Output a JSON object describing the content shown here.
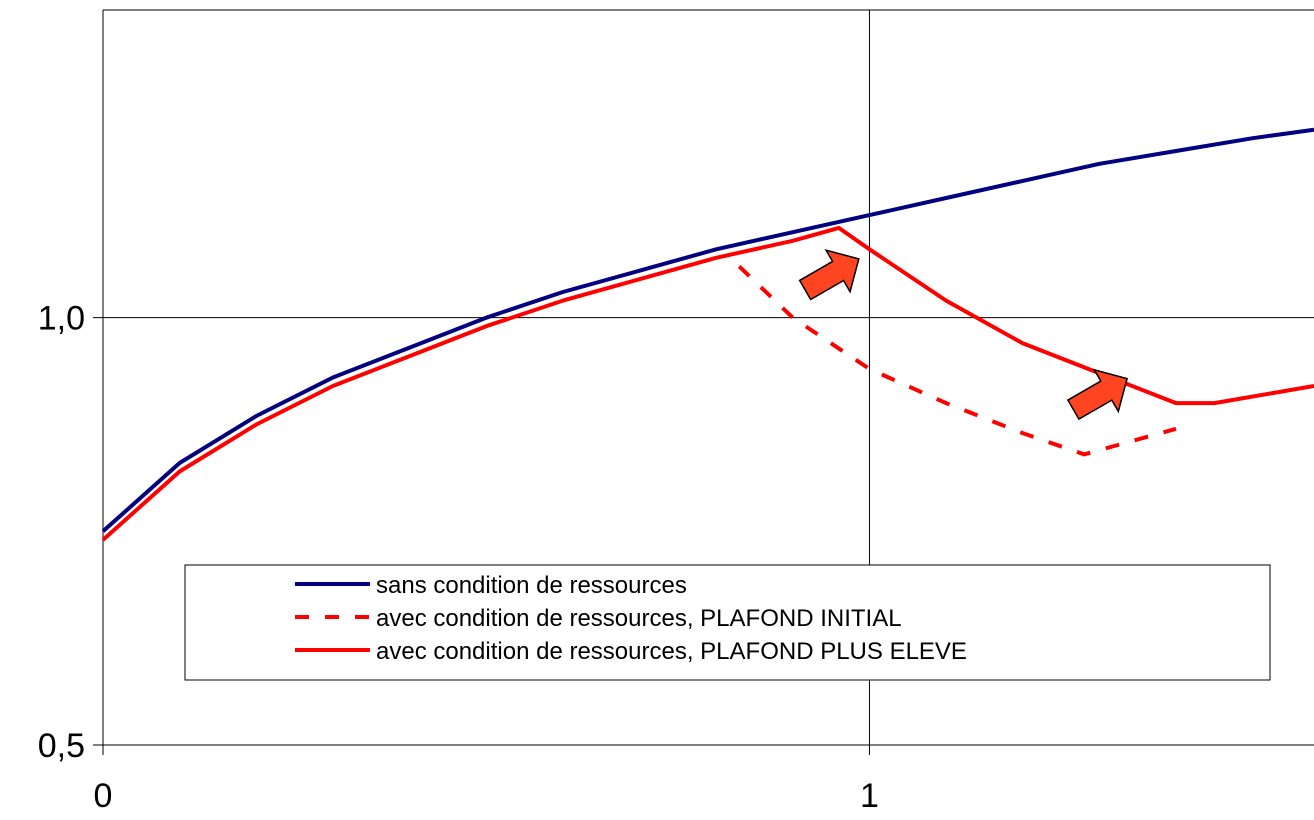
{
  "chart_data": {
    "type": "line",
    "title": "",
    "xlabel": "",
    "ylabel": "",
    "xlim": [
      0,
      1.58
    ],
    "ylim": [
      0.5,
      1.36
    ],
    "x_ticks": [
      {
        "value": 0,
        "label": "0"
      },
      {
        "value": 1,
        "label": "1"
      }
    ],
    "y_ticks": [
      {
        "value": 0.5,
        "label": "0,5"
      },
      {
        "value": 1.0,
        "label": "1,0"
      }
    ],
    "grid": {
      "x": [
        1
      ],
      "y": [
        1.0
      ]
    },
    "legend_position": "bottom-center",
    "series": [
      {
        "name": "sans condition de ressources",
        "color": "#000080",
        "style": "solid",
        "x": [
          0,
          0.1,
          0.2,
          0.3,
          0.4,
          0.5,
          0.6,
          0.7,
          0.8,
          0.9,
          1.0,
          1.1,
          1.2,
          1.3,
          1.4,
          1.5,
          1.58
        ],
        "y": [
          0.75,
          0.83,
          0.885,
          0.93,
          0.965,
          1.0,
          1.03,
          1.055,
          1.08,
          1.1,
          1.12,
          1.14,
          1.16,
          1.18,
          1.195,
          1.21,
          1.22
        ]
      },
      {
        "name": "avec condition de ressources, PLAFOND INITIAL",
        "color": "#ff0000",
        "style": "dashed",
        "x": [
          0.83,
          0.9,
          1.0,
          1.1,
          1.2,
          1.28,
          1.4
        ],
        "y": [
          1.06,
          1.0,
          0.94,
          0.9,
          0.865,
          0.84,
          0.87
        ]
      },
      {
        "name": "avec condition de ressources, PLAFOND PLUS ELEVE",
        "color": "#ff0000",
        "style": "solid",
        "x": [
          0,
          0.1,
          0.2,
          0.3,
          0.4,
          0.5,
          0.6,
          0.7,
          0.8,
          0.9,
          0.96,
          1.0,
          1.1,
          1.2,
          1.3,
          1.4,
          1.45,
          1.58
        ],
        "y": [
          0.74,
          0.82,
          0.875,
          0.92,
          0.955,
          0.99,
          1.02,
          1.045,
          1.07,
          1.09,
          1.105,
          1.08,
          1.02,
          0.97,
          0.935,
          0.9,
          0.9,
          0.92
        ]
      }
    ],
    "annotations": [
      {
        "type": "arrow",
        "color": "#ff4422",
        "x": 0.95,
        "y": 1.05
      },
      {
        "type": "arrow",
        "color": "#ff4422",
        "x": 1.3,
        "y": 0.91
      }
    ]
  }
}
